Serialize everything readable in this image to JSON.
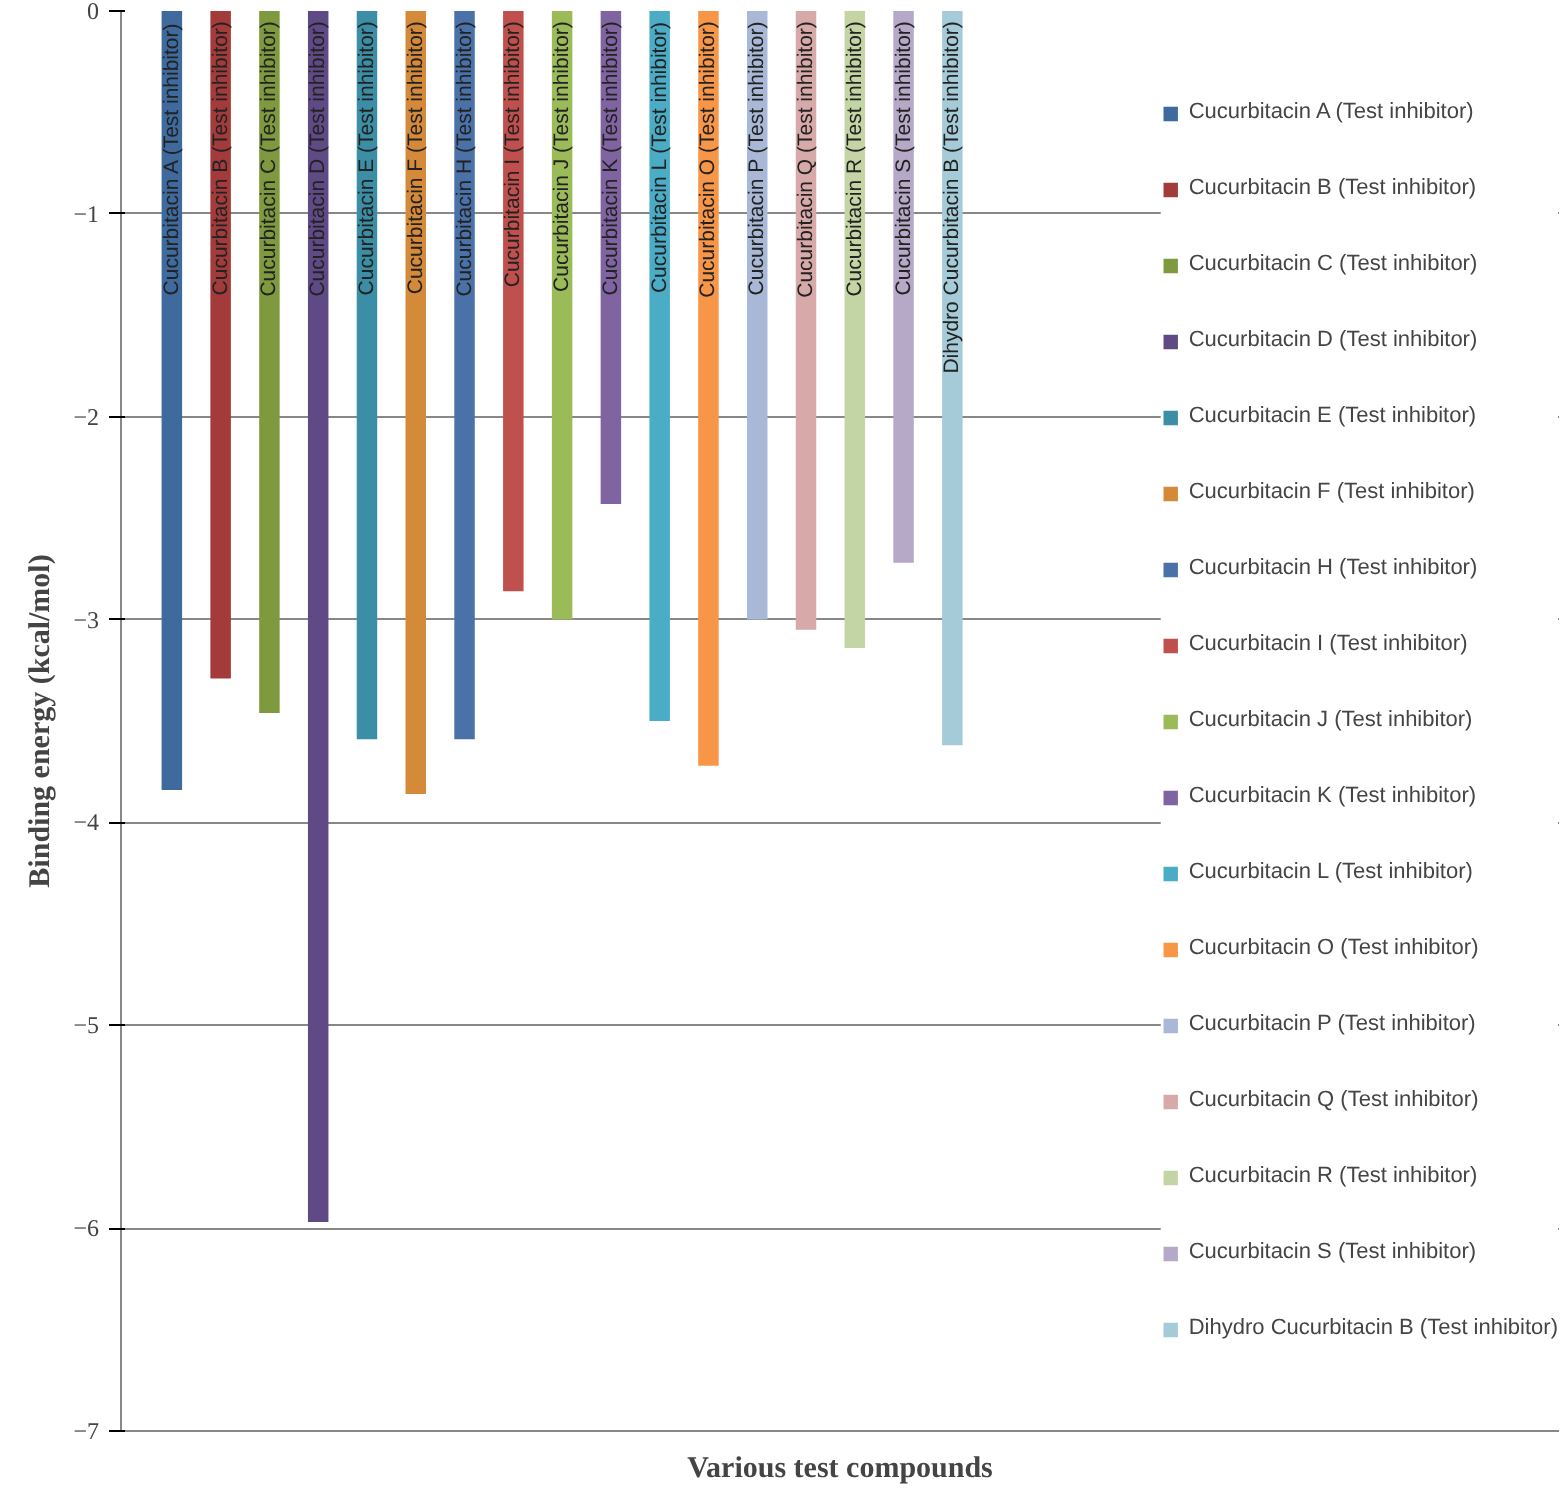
{
  "chart_data": {
    "type": "bar",
    "xlabel": "Various test compounds",
    "ylabel": "Binding energy (kcal/mol)",
    "categories": [
      null
    ],
    "series": [
      {
        "name": "Cucurbitacin A (Test inhibitor)",
        "color": "#3f6a9e",
        "values": [
          -3.84
        ]
      },
      {
        "name": "Cucurbitacin B (Test inhibitor)",
        "color": "#a33b3b",
        "values": [
          -3.29
        ]
      },
      {
        "name": "Cucurbitacin C (Test inhibitor)",
        "color": "#7f9a3e",
        "values": [
          -3.46
        ]
      },
      {
        "name": "Cucurbitacin D (Test inhibitor)",
        "color": "#5f4a86",
        "values": [
          -5.97
        ]
      },
      {
        "name": "Cucurbitacin E (Test inhibitor)",
        "color": "#3b8ea5",
        "values": [
          -3.59
        ]
      },
      {
        "name": "Cucurbitacin F (Test inhibitor)",
        "color": "#d58a3a",
        "values": [
          -3.86
        ]
      },
      {
        "name": "Cucurbitacin H (Test inhibitor)",
        "color": "#4a72a8",
        "values": [
          -3.59
        ]
      },
      {
        "name": "Cucurbitacin I (Test inhibitor)",
        "color": "#c0504d",
        "values": [
          -2.86
        ]
      },
      {
        "name": "Cucurbitacin J (Test inhibitor)",
        "color": "#9bbb59",
        "values": [
          -3.0
        ]
      },
      {
        "name": "Cucurbitacin K (Test inhibitor)",
        "color": "#8064a2",
        "values": [
          -2.43
        ]
      },
      {
        "name": "Cucurbitacin L (Test inhibitor)",
        "color": "#4bacc6",
        "values": [
          -3.5
        ]
      },
      {
        "name": "Cucurbitacin O (Test inhibitor)",
        "color": "#f79646",
        "values": [
          -3.72
        ]
      },
      {
        "name": "Cucurbitacin P (Test inhibitor)",
        "color": "#a9b8d6",
        "values": [
          -3.0
        ]
      },
      {
        "name": "Cucurbitacin Q (Test inhibitor)",
        "color": "#d7a9a9",
        "values": [
          -3.05
        ]
      },
      {
        "name": "Cucurbitacin R (Test inhibitor)",
        "color": "#c3d5a4",
        "values": [
          -3.14
        ]
      },
      {
        "name": "Cucurbitacin S (Test inhibitor)",
        "color": "#b6a9c8",
        "values": [
          -2.72
        ]
      },
      {
        "name": "Dihydro Cucurbitacin B (Test inhibitor)",
        "color": "#a5cbd8",
        "values": [
          -3.62
        ]
      }
    ],
    "ylim": [
      -7,
      0
    ],
    "yticks": [
      0,
      -1,
      -2,
      -3,
      -4,
      -5,
      -6,
      -7
    ],
    "grid": "y",
    "legend": "right",
    "tick_labels": "y"
  }
}
